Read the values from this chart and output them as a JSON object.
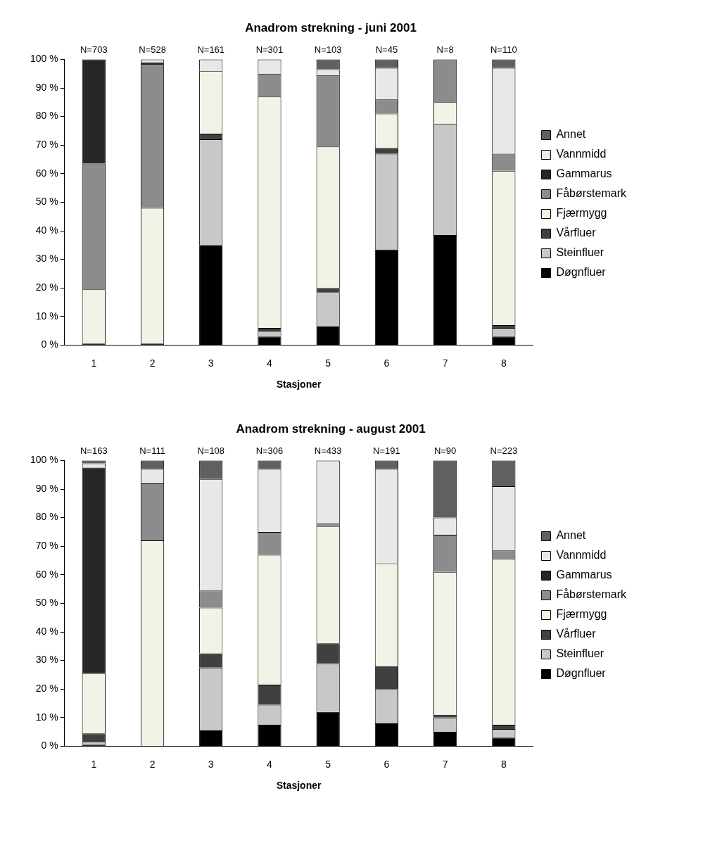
{
  "chart_data": [
    {
      "type": "bar",
      "title": "Anadrom strekning - juni 2001",
      "xlabel": "Stasjoner",
      "categories": [
        "1",
        "2",
        "3",
        "4",
        "5",
        "6",
        "7",
        "8"
      ],
      "stacked": true,
      "legend": "right",
      "grid": false,
      "ylim": [
        0,
        100
      ],
      "yticks": [
        {
          "value": 0,
          "label": "0 %"
        },
        {
          "value": 10,
          "label": "10 %"
        },
        {
          "value": 20,
          "label": "20 %"
        },
        {
          "value": 30,
          "label": "30 %"
        },
        {
          "value": 40,
          "label": "40 %"
        },
        {
          "value": 50,
          "label": "50 %"
        },
        {
          "value": 60,
          "label": "60 %"
        },
        {
          "value": 70,
          "label": "70 %"
        },
        {
          "value": 80,
          "label": "80 %"
        },
        {
          "value": 90,
          "label": "90 %"
        },
        {
          "value": 100,
          "label": "100 %"
        }
      ],
      "series": [
        {
          "name": "Døgnfluer",
          "color": "#000000",
          "values": [
            0.5,
            0.5,
            35,
            3,
            6.5,
            33.5,
            38.5,
            3
          ]
        },
        {
          "name": "Steinfluer",
          "color": "#c8c8c8",
          "values": [
            0,
            0,
            37,
            2,
            12,
            33.5,
            39,
            3
          ]
        },
        {
          "name": "Vårfluer",
          "color": "#404040",
          "values": [
            0,
            0,
            2,
            1,
            1.5,
            2,
            0,
            1
          ]
        },
        {
          "name": "Fjærmygg",
          "color": "#f2f2e6",
          "values": [
            19,
            47.5,
            22,
            81,
            49.5,
            12,
            7.5,
            54
          ]
        },
        {
          "name": "Fåbørstemark",
          "color": "#8c8c8c",
          "values": [
            44,
            50,
            0,
            8,
            25,
            5,
            15,
            6
          ]
        },
        {
          "name": "Gammarus",
          "color": "#262626",
          "values": [
            36.5,
            1,
            0,
            0,
            0,
            0,
            0,
            0
          ]
        },
        {
          "name": "Vannmidd",
          "color": "#e8e8e8",
          "values": [
            0,
            1,
            4,
            5,
            2,
            11,
            0,
            30
          ]
        },
        {
          "name": "Annet",
          "color": "#606060",
          "values": [
            0,
            0,
            0,
            0,
            3.5,
            3,
            0,
            3
          ]
        }
      ],
      "annotations": [
        {
          "text": "N=703",
          "x": "1",
          "y": 100
        },
        {
          "text": "N=528",
          "x": "2",
          "y": 100
        },
        {
          "text": "N=161",
          "x": "3",
          "y": 100
        },
        {
          "text": "N=301",
          "x": "4",
          "y": 100
        },
        {
          "text": "N=103",
          "x": "5",
          "y": 100
        },
        {
          "text": "N=45",
          "x": "6",
          "y": 100
        },
        {
          "text": "N=8",
          "x": "7",
          "y": 100
        },
        {
          "text": "N=110",
          "x": "8",
          "y": 100
        }
      ]
    },
    {
      "type": "bar",
      "title": "Anadrom strekning - august 2001",
      "xlabel": "Stasjoner",
      "categories": [
        "1",
        "2",
        "3",
        "4",
        "5",
        "6",
        "7",
        "8"
      ],
      "stacked": true,
      "legend": "right",
      "grid": false,
      "ylim": [
        0,
        100
      ],
      "yticks": [
        {
          "value": 0,
          "label": "0 %"
        },
        {
          "value": 10,
          "label": "10 %"
        },
        {
          "value": 20,
          "label": "20 %"
        },
        {
          "value": 30,
          "label": "30 %"
        },
        {
          "value": 40,
          "label": "40 %"
        },
        {
          "value": 50,
          "label": "50 %"
        },
        {
          "value": 60,
          "label": "60 %"
        },
        {
          "value": 70,
          "label": "70 %"
        },
        {
          "value": 80,
          "label": "80 %"
        },
        {
          "value": 90,
          "label": "90 %"
        },
        {
          "value": 100,
          "label": "100 %"
        }
      ],
      "series": [
        {
          "name": "Døgnfluer",
          "color": "#000000",
          "values": [
            0.5,
            0,
            5.5,
            7.5,
            12,
            8,
            5,
            3
          ]
        },
        {
          "name": "Steinfluer",
          "color": "#c8c8c8",
          "values": [
            1,
            0,
            22,
            7,
            17,
            12,
            5,
            3
          ]
        },
        {
          "name": "Vårfluer",
          "color": "#404040",
          "values": [
            3,
            0,
            5,
            7,
            7,
            8,
            1,
            1.5
          ]
        },
        {
          "name": "Fjærmygg",
          "color": "#f2f2e6",
          "values": [
            21,
            72,
            16,
            45.5,
            41,
            36,
            50,
            58
          ]
        },
        {
          "name": "Fåbørstemark",
          "color": "#8c8c8c",
          "values": [
            0,
            20,
            6,
            8,
            1,
            0,
            13,
            3
          ]
        },
        {
          "name": "Gammarus",
          "color": "#262626",
          "values": [
            72,
            0,
            0,
            0,
            0,
            0,
            0,
            0
          ]
        },
        {
          "name": "Vannmidd",
          "color": "#e8e8e8",
          "values": [
            1.5,
            5,
            39,
            22,
            22,
            33,
            6,
            22.5
          ]
        },
        {
          "name": "Annet",
          "color": "#606060",
          "values": [
            1,
            3,
            6.5,
            3,
            0,
            3,
            20,
            9
          ]
        }
      ],
      "annotations": [
        {
          "text": "N=163",
          "x": "1",
          "y": 100
        },
        {
          "text": "N=111",
          "x": "2",
          "y": 100
        },
        {
          "text": "N=108",
          "x": "3",
          "y": 100
        },
        {
          "text": "N=306",
          "x": "4",
          "y": 100
        },
        {
          "text": "N=433",
          "x": "5",
          "y": 100
        },
        {
          "text": "N=191",
          "x": "6",
          "y": 100
        },
        {
          "text": "N=90",
          "x": "7",
          "y": 100
        },
        {
          "text": "N=223",
          "x": "8",
          "y": 100
        }
      ]
    }
  ]
}
